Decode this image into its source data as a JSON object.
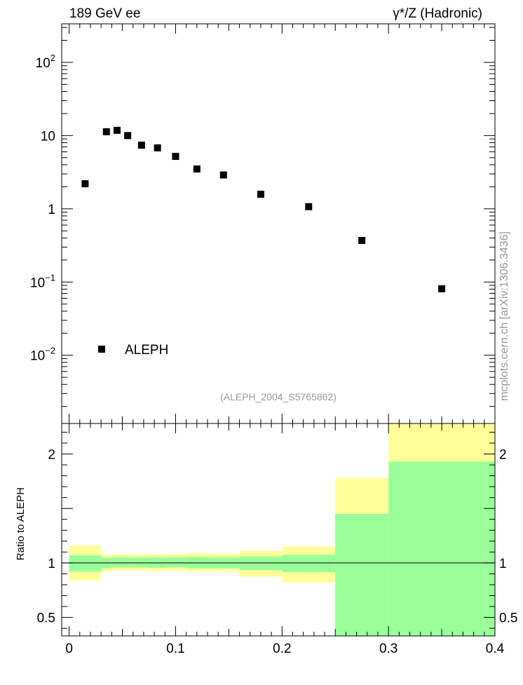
{
  "header": {
    "left_title": "189 GeV ee",
    "right_title": "γ*/Z (Hadronic)"
  },
  "watermark": "mcplots.cern.ch [arXiv:1306.3436]",
  "source_label": "(ALEPH_2004_S5765862)",
  "colors": {
    "band_inner": "#99ff99",
    "band_outer": "#ffff99",
    "marker": "#000000",
    "source": "#999999"
  },
  "chart_data": [
    {
      "type": "scatter",
      "scale": "log",
      "xlim": [
        -0.007,
        0.4
      ],
      "ylim": [
        0.00117,
        336
      ],
      "y_ticks": [
        {
          "value": 0.01,
          "base": "10",
          "exp": "−2"
        },
        {
          "value": 0.1,
          "base": "10",
          "exp": "−1"
        },
        {
          "value": 1,
          "base": "1",
          "exp": ""
        },
        {
          "value": 10,
          "base": "10",
          "exp": ""
        },
        {
          "value": 100,
          "base": "10",
          "exp": "2"
        }
      ],
      "legend": "ALEPH",
      "series": [
        {
          "name": "ALEPH",
          "points": [
            {
              "x": 0.015,
              "y": 2.2
            },
            {
              "x": 0.035,
              "y": 11.3
            },
            {
              "x": 0.045,
              "y": 11.8
            },
            {
              "x": 0.055,
              "y": 10.0
            },
            {
              "x": 0.068,
              "y": 7.4
            },
            {
              "x": 0.083,
              "y": 6.8
            },
            {
              "x": 0.1,
              "y": 5.2
            },
            {
              "x": 0.12,
              "y": 3.5
            },
            {
              "x": 0.145,
              "y": 2.9
            },
            {
              "x": 0.18,
              "y": 1.58
            },
            {
              "x": 0.225,
              "y": 1.07
            },
            {
              "x": 0.275,
              "y": 0.37
            },
            {
              "x": 0.35,
              "y": 0.081
            }
          ]
        }
      ]
    },
    {
      "type": "area",
      "ylabel": "Ratio to ALEPH",
      "xlim": [
        -0.007,
        0.4
      ],
      "ylim": [
        0.33,
        2.28
      ],
      "x_ticks": [
        {
          "value": 0,
          "label": "0"
        },
        {
          "value": 0.1,
          "label": "0.1"
        },
        {
          "value": 0.2,
          "label": "0.2"
        },
        {
          "value": 0.3,
          "label": "0.3"
        },
        {
          "value": 0.4,
          "label": "0.4"
        }
      ],
      "y_ticks": [
        {
          "value": 0.5,
          "label": "0.5"
        },
        {
          "value": 1,
          "label": "1"
        },
        {
          "value": 2,
          "label": "2"
        }
      ],
      "reference_line": 1,
      "bands": [
        {
          "x0": 0.0,
          "x1": 0.03,
          "inner": [
            0.92,
            1.07
          ],
          "outer": [
            0.84,
            1.16
          ]
        },
        {
          "x0": 0.03,
          "x1": 0.04,
          "inner": [
            0.95,
            1.05
          ],
          "outer": [
            0.92,
            1.08
          ]
        },
        {
          "x0": 0.04,
          "x1": 0.05,
          "inner": [
            0.96,
            1.05
          ],
          "outer": [
            0.93,
            1.08
          ]
        },
        {
          "x0": 0.05,
          "x1": 0.06,
          "inner": [
            0.96,
            1.05
          ],
          "outer": [
            0.93,
            1.08
          ]
        },
        {
          "x0": 0.06,
          "x1": 0.075,
          "inner": [
            0.96,
            1.05
          ],
          "outer": [
            0.93,
            1.075
          ]
        },
        {
          "x0": 0.075,
          "x1": 0.09,
          "inner": [
            0.955,
            1.05
          ],
          "outer": [
            0.925,
            1.08
          ]
        },
        {
          "x0": 0.09,
          "x1": 0.11,
          "inner": [
            0.96,
            1.05
          ],
          "outer": [
            0.93,
            1.08
          ]
        },
        {
          "x0": 0.11,
          "x1": 0.13,
          "inner": [
            0.95,
            1.055
          ],
          "outer": [
            0.92,
            1.09
          ]
        },
        {
          "x0": 0.13,
          "x1": 0.16,
          "inner": [
            0.95,
            1.05
          ],
          "outer": [
            0.92,
            1.085
          ]
        },
        {
          "x0": 0.16,
          "x1": 0.2,
          "inner": [
            0.935,
            1.06
          ],
          "outer": [
            0.875,
            1.11
          ]
        },
        {
          "x0": 0.2,
          "x1": 0.25,
          "inner": [
            0.915,
            1.075
          ],
          "outer": [
            0.82,
            1.15
          ]
        },
        {
          "x0": 0.25,
          "x1": 0.3,
          "inner": [
            0.33,
            1.45
          ],
          "outer": [
            0.33,
            1.78
          ]
        },
        {
          "x0": 0.3,
          "x1": 0.4,
          "inner": [
            0.33,
            1.93
          ],
          "outer": [
            0.33,
            2.28
          ]
        }
      ]
    }
  ]
}
